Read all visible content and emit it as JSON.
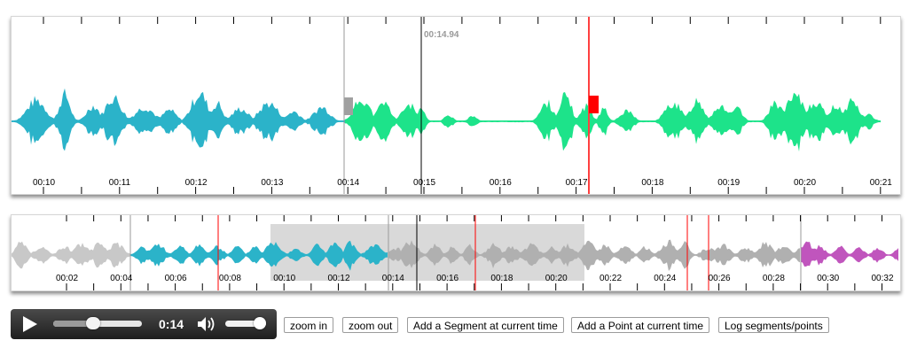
{
  "zoomview": {
    "cursor_label": "00:14.94",
    "ticks": [
      "00:10",
      "00:11",
      "00:12",
      "00:13",
      "00:14",
      "00:15",
      "00:16",
      "00:17",
      "00:18",
      "00:19",
      "00:20",
      "00:21"
    ],
    "colors": {
      "waveform": "#2bb3c9",
      "segment": "#1de38a",
      "point": "#ff0000",
      "cursor": "#000000",
      "handle_gray": "#a0a0a0"
    }
  },
  "overview": {
    "ticks": [
      "00:02",
      "00:04",
      "00:06",
      "00:08",
      "00:10",
      "00:12",
      "00:14",
      "00:16",
      "00:18",
      "00:20",
      "00:22",
      "00:24",
      "00:26",
      "00:28",
      "00:30",
      "00:32"
    ],
    "colors": {
      "waveform": "#c8c8c8",
      "segment_teal": "#2bb3c9",
      "segment_purple": "#c055bd",
      "highlight": "#d9d9d9",
      "point": "#ff0000"
    }
  },
  "player": {
    "time": "0:14",
    "progress": 0.45,
    "volume": 0.95,
    "icons": [
      "play-icon",
      "volume-icon"
    ]
  },
  "buttons": {
    "zoom_in": "zoom in",
    "zoom_out": "zoom out",
    "add_segment": "Add a Segment at current time",
    "add_point": "Add a Point at current time",
    "log": "Log segments/points"
  }
}
